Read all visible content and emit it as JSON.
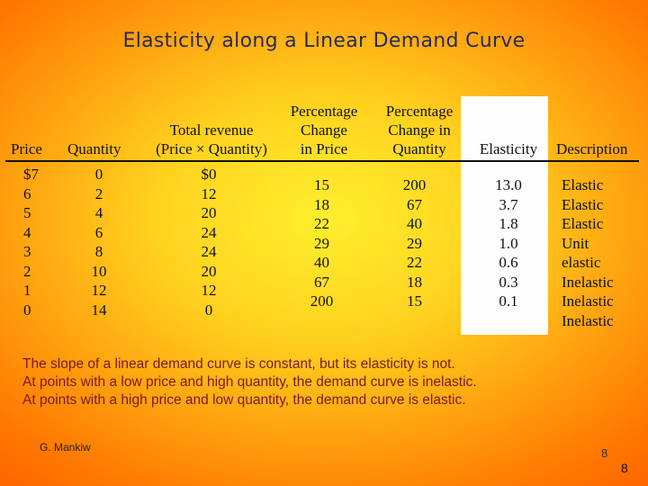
{
  "title": "Elasticity along a Linear Demand Curve",
  "headers": {
    "price": "Price",
    "quantity": "Quantity",
    "revenue_line1": "Total revenue",
    "revenue_line2": "(Price × Quantity)",
    "pct_price_line1": "Percentage",
    "pct_price_line2": "Change",
    "pct_price_line3": "in Price",
    "pct_qty_line1": "Percentage",
    "pct_qty_line2": "Change in",
    "pct_qty_line3": "Quantity",
    "elasticity": "Elasticity",
    "description": "Description"
  },
  "columns": {
    "price": [
      "$7",
      "6",
      "5",
      "4",
      "3",
      "2",
      "1",
      "0"
    ],
    "quantity": [
      "0",
      "2",
      "4",
      "6",
      "8",
      "10",
      "12",
      "14"
    ],
    "revenue": [
      "$0",
      "12",
      "20",
      "24",
      "24",
      "20",
      "12",
      "0"
    ],
    "pct_price": [
      "15",
      "18",
      "22",
      "29",
      "40",
      "67",
      "200"
    ],
    "pct_qty": [
      "200",
      "67",
      "40",
      "29",
      "22",
      "18",
      "15"
    ],
    "elasticity": [
      "13.0",
      "3.7",
      "1.8",
      "1.0",
      "0.6",
      "0.3",
      "0.1"
    ],
    "description": [
      "Elastic",
      "Elastic",
      "Elastic",
      "Unit",
      "elastic",
      "Inelastic",
      "Inelastic",
      "Inelastic"
    ]
  },
  "notes": [
    "The slope of a linear demand curve is constant, but its elasticity is not.",
    "At points with a low price and high quantity, the demand curve is inelastic.",
    "At points with a high price and low quantity, the demand curve is elastic."
  ],
  "author": "G. Mankiw",
  "page_number": "8",
  "page_number_footer": "8"
}
